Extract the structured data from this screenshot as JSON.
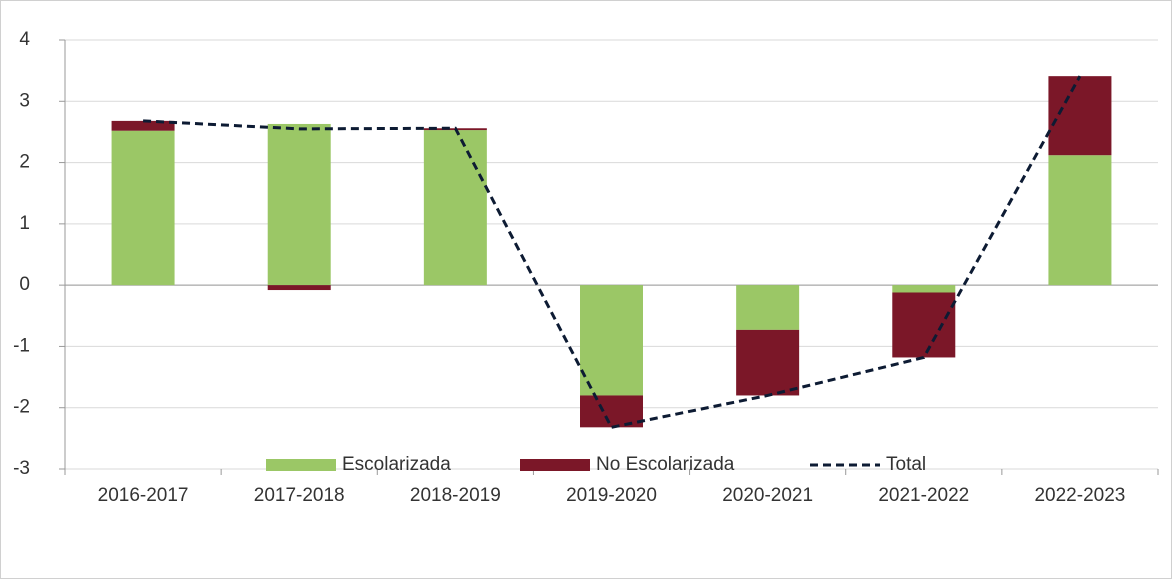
{
  "chart_data": {
    "type": "bar",
    "stacked": true,
    "categories": [
      "2016-2017",
      "2017-2018",
      "2018-2019",
      "2019-2020",
      "2020-2021",
      "2021-2022",
      "2022-2023"
    ],
    "series": [
      {
        "name": "Escolarizada",
        "type": "bar",
        "color": "#9bc766",
        "values": [
          2.52,
          2.63,
          2.53,
          -1.8,
          -0.73,
          -0.12,
          2.12
        ]
      },
      {
        "name": "No Escolarizada",
        "type": "bar",
        "color": "#7b1728",
        "values": [
          0.16,
          -0.08,
          0.03,
          -0.52,
          -1.07,
          -1.06,
          1.29
        ]
      },
      {
        "name": "Total",
        "type": "line",
        "color": "#0d1b33",
        "dashed": true,
        "values": [
          2.68,
          2.55,
          2.56,
          -2.32,
          -1.8,
          -1.18,
          3.41
        ]
      }
    ],
    "ylim": [
      -3,
      4
    ],
    "yticks": [
      -3,
      -2,
      -1,
      0,
      1,
      2,
      3,
      4
    ],
    "grid": true,
    "legend": "bottom"
  }
}
